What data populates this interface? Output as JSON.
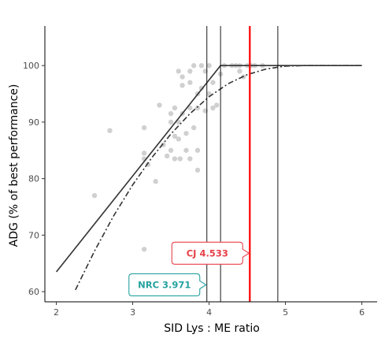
{
  "chart_data": {
    "type": "scatter",
    "xlabel": "SID Lys : ME ratio",
    "ylabel": "ADG (% of best performance)",
    "xlim": [
      1.85,
      6.2
    ],
    "ylim": [
      58.2,
      107
    ],
    "xticks": [
      2,
      3,
      4,
      5,
      6
    ],
    "yticks": [
      60,
      70,
      80,
      90,
      100
    ],
    "grid": false,
    "points": [
      [
        2.5,
        77
      ],
      [
        2.7,
        88.5
      ],
      [
        3.15,
        89
      ],
      [
        3.15,
        84.5
      ],
      [
        3.15,
        83.5
      ],
      [
        3.15,
        67.5
      ],
      [
        3.2,
        82.5
      ],
      [
        3.3,
        79.5
      ],
      [
        3.35,
        93
      ],
      [
        3.4,
        86
      ],
      [
        3.45,
        84
      ],
      [
        3.5,
        90
      ],
      [
        3.55,
        87.5
      ],
      [
        3.6,
        90
      ],
      [
        3.6,
        87
      ],
      [
        3.62,
        83.5
      ],
      [
        3.65,
        91.5
      ],
      [
        3.5,
        91.5
      ],
      [
        3.5,
        85
      ],
      [
        3.55,
        83.5
      ],
      [
        3.6,
        99
      ],
      [
        3.65,
        98
      ],
      [
        3.65,
        96.5
      ],
      [
        3.75,
        99
      ],
      [
        3.75,
        97
      ],
      [
        3.75,
        92.5
      ],
      [
        3.75,
        83.5
      ],
      [
        3.7,
        88
      ],
      [
        3.8,
        100
      ],
      [
        3.8,
        89
      ],
      [
        3.85,
        92.5
      ],
      [
        3.85,
        95
      ],
      [
        3.85,
        81.5
      ],
      [
        3.85,
        85
      ],
      [
        3.9,
        100
      ],
      [
        3.9,
        96
      ],
      [
        3.95,
        99
      ],
      [
        3.95,
        92
      ],
      [
        4.0,
        100
      ],
      [
        4.0,
        95
      ],
      [
        4.05,
        97
      ],
      [
        4.05,
        92.5
      ],
      [
        4.1,
        93
      ],
      [
        4.15,
        98.5
      ],
      [
        4.2,
        100
      ],
      [
        4.3,
        100
      ],
      [
        4.35,
        100
      ],
      [
        4.4,
        100
      ],
      [
        4.4,
        99
      ],
      [
        4.45,
        98
      ],
      [
        4.5,
        100
      ],
      [
        4.55,
        100
      ],
      [
        4.6,
        100
      ],
      [
        4.7,
        100
      ],
      [
        3.55,
        92.5
      ],
      [
        3.7,
        85
      ]
    ],
    "series": [
      {
        "style": "solid",
        "x": [
          2.0,
          4.15,
          6.0
        ],
        "y": [
          63.5,
          100,
          100
        ]
      },
      {
        "style": "dashdot",
        "x": [
          2.25,
          2.5,
          2.75,
          3.0,
          3.25,
          3.5,
          3.75,
          4.0,
          4.25,
          4.5,
          4.75,
          5.0,
          5.25,
          5.5,
          6.0
        ],
        "y": [
          60.3,
          67.2,
          73.4,
          78.9,
          83.7,
          87.9,
          91.5,
          94.5,
          96.8,
          98.4,
          99.4,
          99.9,
          100,
          100,
          100
        ]
      }
    ],
    "vlines": [
      {
        "x": 3.971,
        "color": "#000000"
      },
      {
        "x": 4.15,
        "color": "#000000"
      },
      {
        "x": 4.533,
        "color": "#ff0000"
      },
      {
        "x": 4.9,
        "color": "#000000"
      }
    ],
    "annotations": [
      {
        "label": "CJ",
        "value": "4.533",
        "color": "#e8414a",
        "x": 4.533,
        "y": 66.8
      },
      {
        "label": "NRC",
        "value": "3.971",
        "color": "#26a2a0",
        "x": 3.971,
        "y": 61.2
      }
    ],
    "colors": {
      "points": "#d0d0d0",
      "lines": "#333333"
    }
  }
}
